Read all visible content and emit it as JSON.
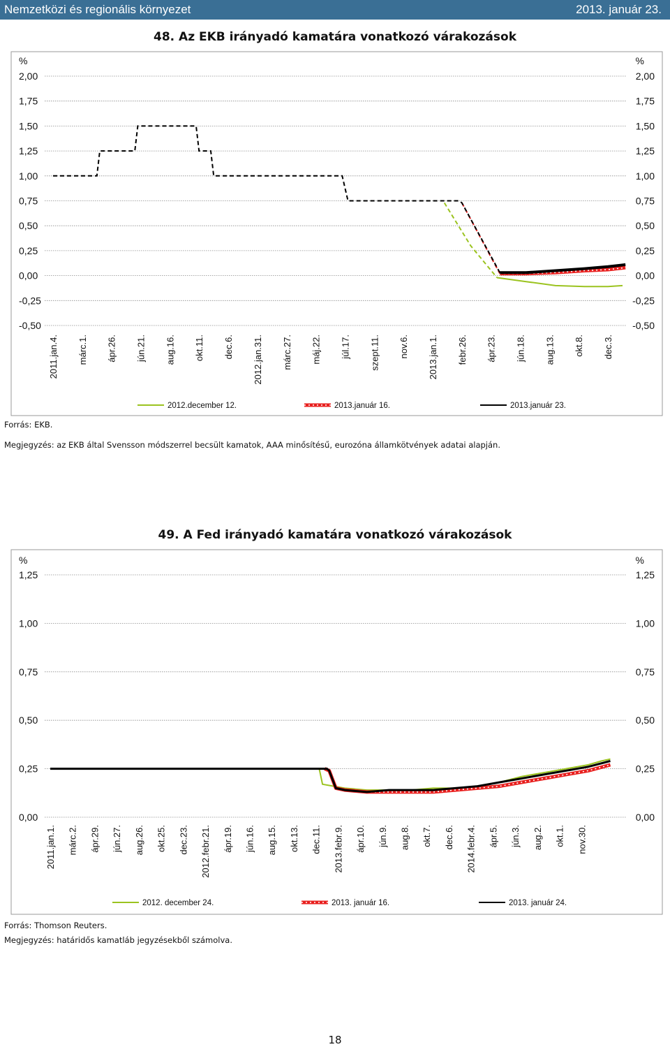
{
  "header": {
    "section": "Nemzetközi és regionális környezet",
    "date": "2013. január 23."
  },
  "chart48": {
    "title": "48. Az EKB irányadó kamatára vonatkozó várakozások",
    "source": "Forrás: EKB.",
    "note": "Megjegyzés: az EKB által Svensson módszerrel becsült kamatok, AAA minősítésű, eurozóna államkötvények adatai alapján."
  },
  "chart49": {
    "title": "49. A Fed irányadó kamatára vonatkozó várakozások",
    "source": "Forrás: Thomson Reuters.",
    "note": "Megjegyzés: határidős kamatláb jegyzésekből számolva."
  },
  "page": {
    "number": "18"
  },
  "chart_data": [
    {
      "id": "ekb",
      "type": "line",
      "title": "48. Az EKB irányadó kamatára vonatkozó várakozások",
      "ylabel": "%",
      "ylim": [
        -0.5,
        2.0
      ],
      "yticks": [
        "2,00",
        "1,75",
        "1,50",
        "1,25",
        "1,00",
        "0,75",
        "0,50",
        "0,25",
        "0,00",
        "-0,25",
        "-0,50"
      ],
      "ytick_values": [
        2.0,
        1.75,
        1.5,
        1.25,
        1.0,
        0.75,
        0.5,
        0.25,
        0.0,
        -0.25,
        -0.5
      ],
      "x_range": [
        0,
        19.5
      ],
      "categories": [
        "2011.jan.4.",
        "márc.1.",
        "ápr.26.",
        "jún.21.",
        "aug.16.",
        "okt.11.",
        "dec.6.",
        "2012.jan.31.",
        "márc.27.",
        "máj.22.",
        "júl.17.",
        "szept.11.",
        "nov.6.",
        "2013.jan.1.",
        "febr.26.",
        "ápr.23.",
        "jún.18.",
        "aug.13.",
        "okt.8.",
        "dec.3."
      ],
      "grid": true,
      "legend": "bottom",
      "series": [
        {
          "name": "2012.december 12.",
          "color": "#9bc31f",
          "style": "solid-dashed",
          "dash_end": 15.2,
          "x": [
            13.4,
            14.3,
            15.2,
            16.2,
            17.2,
            18.2,
            19.0,
            19.5
          ],
          "y": [
            0.73,
            0.3,
            -0.02,
            -0.06,
            -0.1,
            -0.11,
            -0.11,
            -0.1
          ]
        },
        {
          "name": "2013.január 16.",
          "color": "#e8201f",
          "style": "dotted-red",
          "dash_end": 15.3,
          "x": [
            14.0,
            15.3,
            16.2,
            17.2,
            18.2,
            19.0,
            19.6
          ],
          "y": [
            0.73,
            0.02,
            0.02,
            0.03,
            0.05,
            0.06,
            0.08
          ]
        },
        {
          "name": "2013.január 23.",
          "color": "#000000",
          "style": "solid-dashed",
          "dash_end": 15.3,
          "x": [
            0,
            1.5,
            1.6,
            2.8,
            2.9,
            4.9,
            5.0,
            5.4,
            5.5,
            9.9,
            10.1,
            13.9,
            14.0,
            15.3,
            16.2,
            17.2,
            18.2,
            19.0,
            19.6
          ],
          "y": [
            1.0,
            1.0,
            1.25,
            1.25,
            1.5,
            1.5,
            1.25,
            1.25,
            1.0,
            1.0,
            0.75,
            0.75,
            0.73,
            0.03,
            0.03,
            0.05,
            0.07,
            0.09,
            0.11
          ]
        }
      ]
    },
    {
      "id": "fed",
      "type": "line",
      "title": "49. A Fed irányadó kamatára vonatkozó várakozások",
      "ylabel": "%",
      "ylim": [
        0.0,
        1.25
      ],
      "yticks": [
        "1,25",
        "1,00",
        "0,75",
        "0,50",
        "0,25",
        "0,00"
      ],
      "ytick_values": [
        1.25,
        1.0,
        0.75,
        0.5,
        0.25,
        0.0
      ],
      "x_range": [
        0,
        25.6
      ],
      "categories": [
        "2011.jan.1.",
        "márc.2.",
        "ápr.29.",
        "jún.27.",
        "aug.26.",
        "okt.25.",
        "dec.23.",
        "2012.febr.21.",
        "ápr.19.",
        "jún.16.",
        "aug.15.",
        "okt.13.",
        "dec.11.",
        "2013.febr.9.",
        "ápr.10.",
        "jún.9.",
        "aug.8.",
        "okt.7.",
        "dec.6.",
        "2014.febr.4.",
        "ápr.5.",
        "jún.3.",
        "aug.2.",
        "okt.1.",
        "nov.30."
      ],
      "grid": true,
      "legend": "bottom",
      "series": [
        {
          "name": "2012. december 24.",
          "color": "#9bc31f",
          "style": "solid",
          "x": [
            0,
            12.15,
            12.3,
            12.8,
            13.3,
            14.3,
            15.3,
            16.3,
            17.3,
            18.3,
            19.3,
            20.3,
            21.3,
            22.3,
            23.3,
            24.3,
            24.9,
            25.3
          ],
          "y": [
            0.25,
            0.25,
            0.17,
            0.16,
            0.15,
            0.14,
            0.14,
            0.14,
            0.15,
            0.15,
            0.16,
            0.18,
            0.21,
            0.23,
            0.25,
            0.27,
            0.29,
            0.3
          ]
        },
        {
          "name": "2013. január 16.",
          "color": "#e8201f",
          "style": "dotted-red",
          "x": [
            12.4,
            12.6,
            12.9,
            13.3,
            14.3,
            15.3,
            16.3,
            17.3,
            18.3,
            19.3,
            20.3,
            21.3,
            22.3,
            23.3,
            24.3,
            25.3
          ],
          "y": [
            0.25,
            0.24,
            0.15,
            0.14,
            0.13,
            0.13,
            0.13,
            0.13,
            0.14,
            0.15,
            0.16,
            0.18,
            0.2,
            0.22,
            0.24,
            0.27
          ]
        },
        {
          "name": "2013. január 24.",
          "color": "#000000",
          "style": "solid",
          "x": [
            0,
            12.5,
            12.6,
            12.9,
            13.3,
            14.3,
            15.3,
            16.3,
            17.3,
            18.3,
            19.3,
            20.3,
            21.3,
            22.3,
            23.3,
            24.3,
            25.3
          ],
          "y": [
            0.25,
            0.25,
            0.24,
            0.15,
            0.14,
            0.13,
            0.14,
            0.14,
            0.14,
            0.15,
            0.16,
            0.18,
            0.2,
            0.22,
            0.24,
            0.26,
            0.29
          ]
        }
      ]
    }
  ]
}
